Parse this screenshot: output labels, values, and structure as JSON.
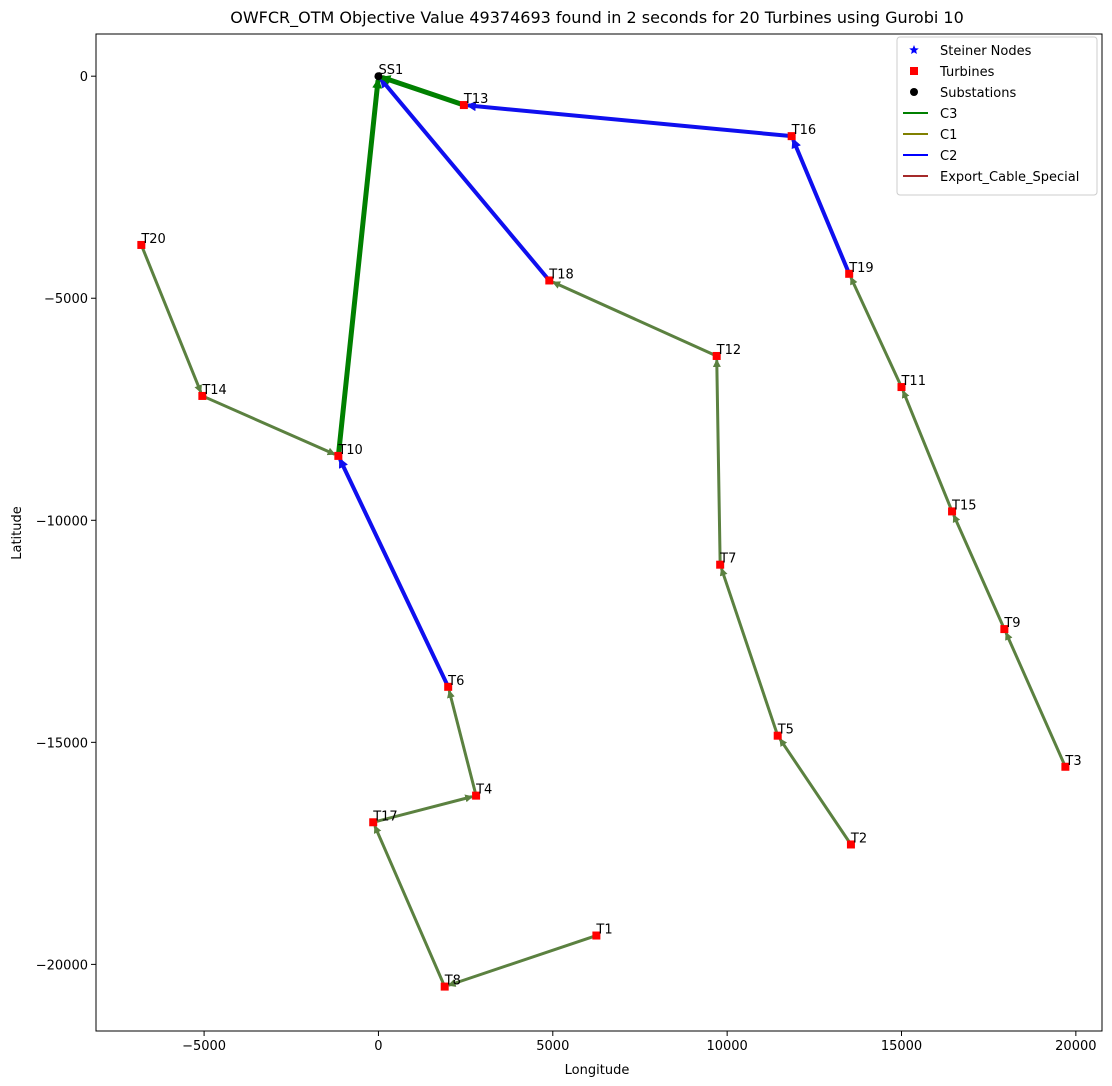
{
  "chart_data": {
    "type": "scatter",
    "title": "OWFCR_OTM Objective Value 49374693 found in 2 seconds for 20 Turbines using Gurobi 10",
    "xlabel": "Longitude",
    "ylabel": "Latitude",
    "xlim": [
      -8100,
      20750
    ],
    "ylim": [
      -21500,
      950
    ],
    "xticks": [
      -5000,
      0,
      5000,
      10000,
      15000,
      20000
    ],
    "yticks": [
      0,
      -5000,
      -10000,
      -15000,
      -20000
    ],
    "grid": false,
    "legend_position": "top-right",
    "legend": [
      {
        "name": "Steiner Nodes",
        "marker": "star",
        "color": "#0000ff"
      },
      {
        "name": "Turbines",
        "marker": "square",
        "color": "#ff0000"
      },
      {
        "name": "Substations",
        "marker": "circle",
        "color": "#000000"
      },
      {
        "name": "C3",
        "marker": "line",
        "color": "#008000"
      },
      {
        "name": "C1",
        "marker": "line",
        "color": "#808000"
      },
      {
        "name": "C2",
        "marker": "line",
        "color": "#0000ff"
      },
      {
        "name": "Export_Cable_Special",
        "marker": "line",
        "color": "#a52a2a"
      }
    ],
    "substations": [
      {
        "label": "SS1",
        "x": 0,
        "y": 0
      }
    ],
    "turbines": [
      {
        "label": "T1",
        "x": 6250,
        "y": -19350
      },
      {
        "label": "T2",
        "x": 13550,
        "y": -17300
      },
      {
        "label": "T3",
        "x": 19700,
        "y": -15550
      },
      {
        "label": "T4",
        "x": 2800,
        "y": -16200
      },
      {
        "label": "T5",
        "x": 11450,
        "y": -14850
      },
      {
        "label": "T6",
        "x": 2000,
        "y": -13750
      },
      {
        "label": "T7",
        "x": 9800,
        "y": -11000
      },
      {
        "label": "T8",
        "x": 1900,
        "y": -20500
      },
      {
        "label": "T9",
        "x": 17950,
        "y": -12450
      },
      {
        "label": "T10",
        "x": -1150,
        "y": -8550
      },
      {
        "label": "T11",
        "x": 15000,
        "y": -7000
      },
      {
        "label": "T12",
        "x": 9700,
        "y": -6300
      },
      {
        "label": "T13",
        "x": 2450,
        "y": -650
      },
      {
        "label": "T14",
        "x": -5050,
        "y": -7200
      },
      {
        "label": "T15",
        "x": 16450,
        "y": -9800
      },
      {
        "label": "T16",
        "x": 11850,
        "y": -1350
      },
      {
        "label": "T17",
        "x": -150,
        "y": -16800
      },
      {
        "label": "T18",
        "x": 4900,
        "y": -4600
      },
      {
        "label": "T19",
        "x": 13500,
        "y": -4450
      },
      {
        "label": "T20",
        "x": -6800,
        "y": -3800
      }
    ],
    "cables": [
      {
        "from": "T1",
        "to": "T8",
        "type": "C1"
      },
      {
        "from": "T8",
        "to": "T17",
        "type": "C1"
      },
      {
        "from": "T17",
        "to": "T4",
        "type": "C1"
      },
      {
        "from": "T4",
        "to": "T6",
        "type": "C1"
      },
      {
        "from": "T6",
        "to": "T10",
        "type": "C2"
      },
      {
        "from": "T20",
        "to": "T14",
        "type": "C1"
      },
      {
        "from": "T14",
        "to": "T10",
        "type": "C1"
      },
      {
        "from": "T10",
        "to": "SS1",
        "type": "C3"
      },
      {
        "from": "T2",
        "to": "T5",
        "type": "C1"
      },
      {
        "from": "T5",
        "to": "T7",
        "type": "C1"
      },
      {
        "from": "T7",
        "to": "T12",
        "type": "C1"
      },
      {
        "from": "T12",
        "to": "T18",
        "type": "C1"
      },
      {
        "from": "T18",
        "to": "SS1",
        "type": "C2"
      },
      {
        "from": "T3",
        "to": "T9",
        "type": "C1"
      },
      {
        "from": "T9",
        "to": "T15",
        "type": "C1"
      },
      {
        "from": "T15",
        "to": "T11",
        "type": "C1"
      },
      {
        "from": "T11",
        "to": "T19",
        "type": "C1"
      },
      {
        "from": "T19",
        "to": "T16",
        "type": "C2"
      },
      {
        "from": "T16",
        "to": "T13",
        "type": "C2"
      },
      {
        "from": "T13",
        "to": "SS1",
        "type": "C3"
      }
    ],
    "cable_colors": {
      "C1": "#5b8140",
      "C2": "#0f0fef",
      "C3": "#008000"
    }
  }
}
